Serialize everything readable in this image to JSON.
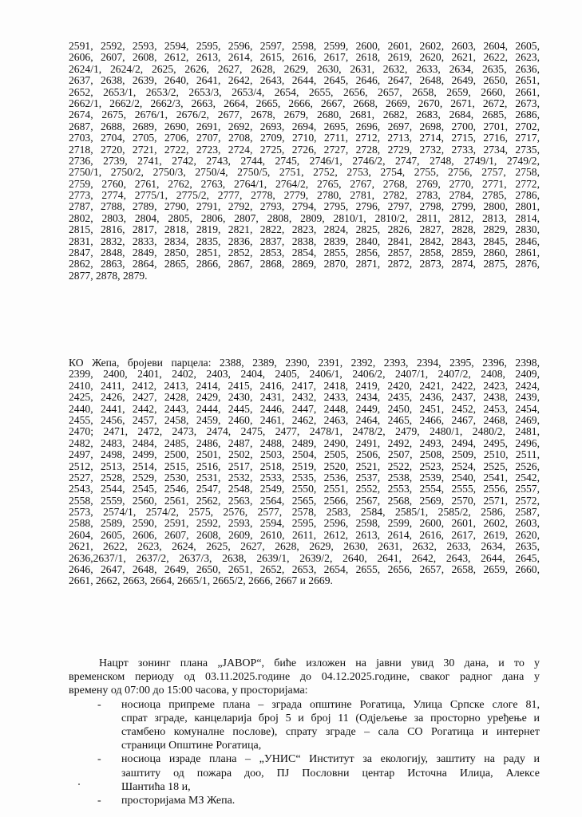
{
  "parcels_block_1": [
    "2591, 2592, 2593, 2594, 2595, 2596, 2597, 2598, 2599, 2600, 2601, 2602, 2603, 2604, 2605,",
    "2606, 2607, 2608, 2612, 2613, 2614, 2615, 2616, 2617, 2618, 2619, 2620, 2621, 2622, 2623,",
    "2624/1, 2624/2, 2625, 2626, 2627, 2628, 2629, 2630, 2631, 2632, 2633, 2634, 2635, 2636,",
    "2637, 2638, 2639, 2640, 2641, 2642, 2643, 2644, 2645, 2646, 2647, 2648, 2649, 2650, 2651,",
    "2652, 2653/1, 2653/2, 2653/3, 2653/4, 2654, 2655, 2656, 2657, 2658, 2659, 2660, 2661,",
    "2662/1, 2662/2, 2662/3, 2663, 2664, 2665, 2666, 2667, 2668, 2669, 2670, 2671, 2672, 2673,",
    "2674, 2675, 2676/1, 2676/2, 2677, 2678, 2679, 2680, 2681, 2682, 2683, 2684, 2685, 2686,",
    "2687, 2688, 2689, 2690, 2691, 2692, 2693, 2694, 2695, 2696, 2697, 2698, 2700, 2701, 2702,",
    "2703, 2704, 2705, 2706, 2707, 2708, 2709, 2710, 2711, 2712, 2713, 2714, 2715, 2716, 2717,",
    "2718, 2720, 2721, 2722, 2723, 2724, 2725, 2726, 2727, 2728, 2729, 2732, 2733, 2734, 2735,",
    "2736, 2739, 2741, 2742, 2743, 2744, 2745, 2746/1, 2746/2, 2747, 2748, 2749/1, 2749/2,",
    "2750/1, 2750/2, 2750/3, 2750/4, 2750/5, 2751, 2752, 2753, 2754, 2755, 2756, 2757, 2758,",
    "2759, 2760, 2761, 2762, 2763, 2764/1, 2764/2, 2765, 2767, 2768, 2769, 2770, 2771, 2772,",
    "2773, 2774, 2775/1, 2775/2, 2777, 2778, 2779, 2780, 2781, 2782, 2783, 2784, 2785, 2786,",
    "2787, 2788, 2789, 2790, 2791, 2792, 2793, 2794, 2795, 2796, 2797, 2798, 2799, 2800, 2801,",
    "2802, 2803, 2804, 2805, 2806, 2807, 2808, 2809, 2810/1, 2810/2, 2811, 2812, 2813, 2814,",
    "2815, 2816, 2817, 2818, 2819, 2821, 2822, 2823, 2824, 2825, 2826, 2827, 2828, 2829, 2830,",
    "2831, 2832, 2833, 2834, 2835, 2836, 2837, 2838, 2839, 2840, 2841, 2842, 2843, 2845, 2846,",
    "2847, 2848, 2849, 2850, 2851, 2852, 2853, 2854, 2855, 2856, 2857, 2858, 2859, 2860, 2861,",
    "2862, 2863, 2864, 2865, 2866, 2867, 2868, 2869, 2870, 2871, 2872, 2873, 2874, 2875, 2876,",
    "2877, 2878, 2879."
  ],
  "parcels_block_2": [
    "КО Жепа, бројеви парцела: 2388, 2389, 2390, 2391, 2392, 2393, 2394, 2395, 2396, 2398,",
    "2399, 2400, 2401, 2402, 2403, 2404, 2405, 2406/1, 2406/2, 2407/1, 2407/2, 2408, 2409,",
    "2410, 2411, 2412, 2413, 2414, 2415, 2416, 2417, 2418, 2419, 2420, 2421, 2422, 2423, 2424,",
    "2425, 2426, 2427, 2428, 2429, 2430, 2431, 2432, 2433, 2434, 2435, 2436, 2437, 2438, 2439,",
    "2440, 2441, 2442, 2443, 2444, 2445, 2446, 2447, 2448, 2449, 2450, 2451, 2452, 2453, 2454,",
    "2455, 2456, 2457, 2458, 2459, 2460, 2461, 2462, 2463, 2464, 2465, 2466, 2467, 2468, 2469,",
    "2470; 2471, 2472, 2473, 2474, 2475, 2477, 2478/1, 2478/2, 2479, 2480/1, 2480/2, 2481,",
    "2482, 2483, 2484, 2485, 2486, 2487, 2488, 2489, 2490, 2491, 2492, 2493, 2494, 2495, 2496,",
    "2497, 2498, 2499, 2500, 2501, 2502, 2503, 2504, 2505, 2506, 2507, 2508, 2509, 2510, 2511,",
    "2512, 2513, 2514, 2515, 2516, 2517, 2518, 2519, 2520, 2521, 2522, 2523, 2524, 2525, 2526,",
    "2527, 2528, 2529, 2530, 2531, 2532, 2533, 2535, 2536, 2537, 2538, 2539, 2540, 2541, 2542,",
    "2543, 2544, 2545, 2546, 2547, 2548, 2549, 2550, 2551, 2552, 2553, 2554, 2555, 2556, 2557,",
    "2558, 2559, 2560, 2561, 2562, 2563, 2564, 2565, 2566, 2567, 2568, 2569, 2570, 2571, 2572,",
    "2573, 2574/1, 2574/2, 2575, 2576, 2577, 2578, 2583, 2584, 2585/1, 2585/2, 2586, 2587,",
    "2588, 2589, 2590, 2591, 2592, 2593, 2594, 2595, 2596, 2598, 2599, 2600, 2601, 2602, 2603,",
    "2604, 2605, 2606, 2607, 2608, 2609, 2610, 2611, 2612, 2613, 2614, 2616, 2617, 2619, 2620,",
    "2621, 2622, 2623, 2624, 2625, 2627, 2628, 2629, 2630, 2631, 2632, 2633, 2634, 2635,",
    "2636,2637/1, 2637/2, 2637/3, 2638, 2639/1, 2639/2, 2640, 2641, 2642, 2643, 2644, 2645,",
    "2646, 2647, 2648, 2649, 2650, 2651, 2652, 2653, 2654, 2655, 2656, 2657, 2658, 2659, 2660,",
    "2661, 2662, 2663, 2664, 2665/1, 2665/2, 2666, 2667 и 2669."
  ],
  "notice": {
    "paragraph": [
      "Нацрт зонинг плана „JAВОР“, биће изложен на јавни увид 30 дана, и то у",
      "временском периоду од  03.11.2025.године до 04.12.2025.године, сваког радног дана у",
      "времену од 07:00 до 15:00 часова,  у просторијама:"
    ],
    "bullet_marker": "-",
    "bullets": [
      [
        "носиоца припреме плана – зграда општине Рогатица, Улица Српске слоге 81,",
        "спрат зграде, канцеларија број 5 и број 11 (Одјељење за просторно уређење и",
        "стамбено комуналне послове),  спрату зграде – сала СО Рогатица и интернет",
        "страници Општине Рогатица,"
      ],
      [
        "носиоца израде плана – „УНИС“ Институт за екологију, заштиту на раду и",
        "заштиту од пожара доо, ПЈ Пословни центар Источна Илиџа, Алексе",
        "Шантића 18 и,"
      ],
      [
        "просторијама МЗ Жепа."
      ]
    ]
  }
}
